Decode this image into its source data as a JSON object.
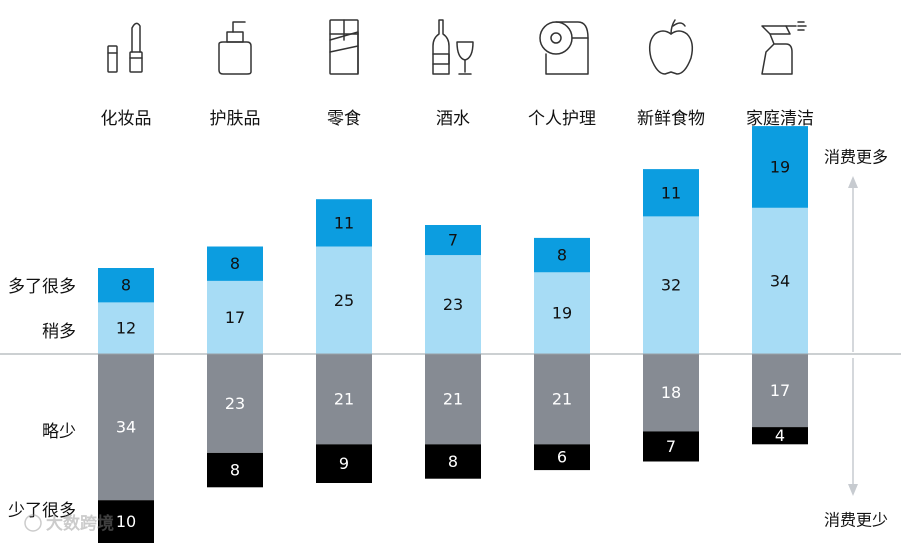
{
  "chart_data": {
    "type": "bar",
    "stacked": true,
    "diverging": true,
    "categories": [
      "化妆品",
      "护肤品",
      "零食",
      "酒水",
      "个人护理",
      "新鲜食物",
      "家庭清洁"
    ],
    "series": [
      {
        "name": "多了很多",
        "values": [
          8,
          8,
          11,
          7,
          8,
          11,
          19
        ],
        "color": "#0c9de0",
        "text_color": "#111111",
        "direction": "up"
      },
      {
        "name": "稍多",
        "values": [
          12,
          17,
          25,
          23,
          19,
          32,
          34
        ],
        "color": "#a7dcf5",
        "text_color": "#111111",
        "direction": "up"
      },
      {
        "name": "略少",
        "values": [
          34,
          23,
          21,
          21,
          21,
          18,
          17
        ],
        "color": "#868b93",
        "text_color": "#ffffff",
        "direction": "down"
      },
      {
        "name": "少了很多",
        "values": [
          10,
          8,
          9,
          8,
          6,
          7,
          4
        ],
        "color": "#000000",
        "text_color": "#ffffff",
        "direction": "down"
      }
    ],
    "icons": [
      "lipstick-icon",
      "lotion-bottle-icon",
      "chocolate-bar-icon",
      "wine-bottle-glass-icon",
      "toilet-paper-icon",
      "apple-icon",
      "spray-bottle-icon"
    ],
    "top_annotation": "消费更多",
    "bottom_annotation": "消费更少",
    "watermark": "大数跨境",
    "baseline_color": "#9aa0a6",
    "arrow_color": "#c7cbd0"
  }
}
